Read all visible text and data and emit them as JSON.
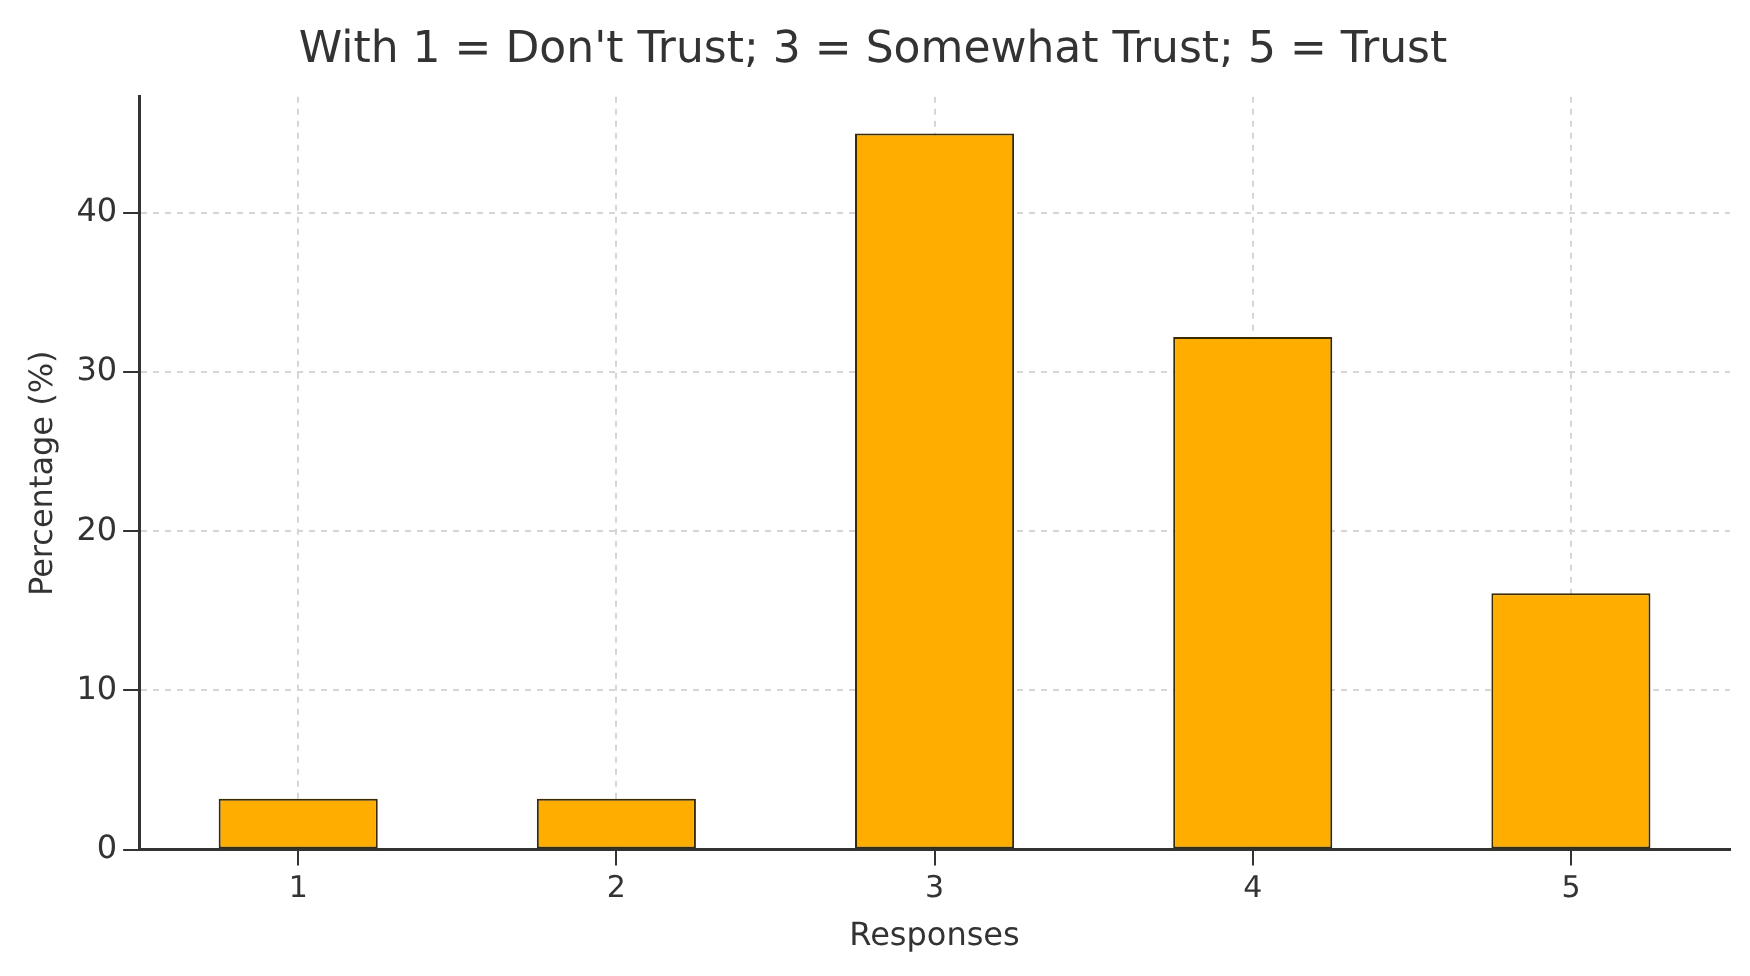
{
  "chart_data": {
    "type": "bar",
    "title": "With 1 = Don't Trust; 3 = Somewhat Trust; 5 = Trust",
    "xlabel": "Responses",
    "ylabel": "Percentage (%)",
    "categories": [
      "1",
      "2",
      "3",
      "4",
      "5"
    ],
    "values": [
      3.2,
      3.2,
      45.0,
      32.2,
      16.1
    ],
    "color": "#ffae00",
    "ylim": [
      0,
      47.3
    ],
    "yticks": [
      0,
      10,
      20,
      30,
      40
    ],
    "grid": true
  }
}
